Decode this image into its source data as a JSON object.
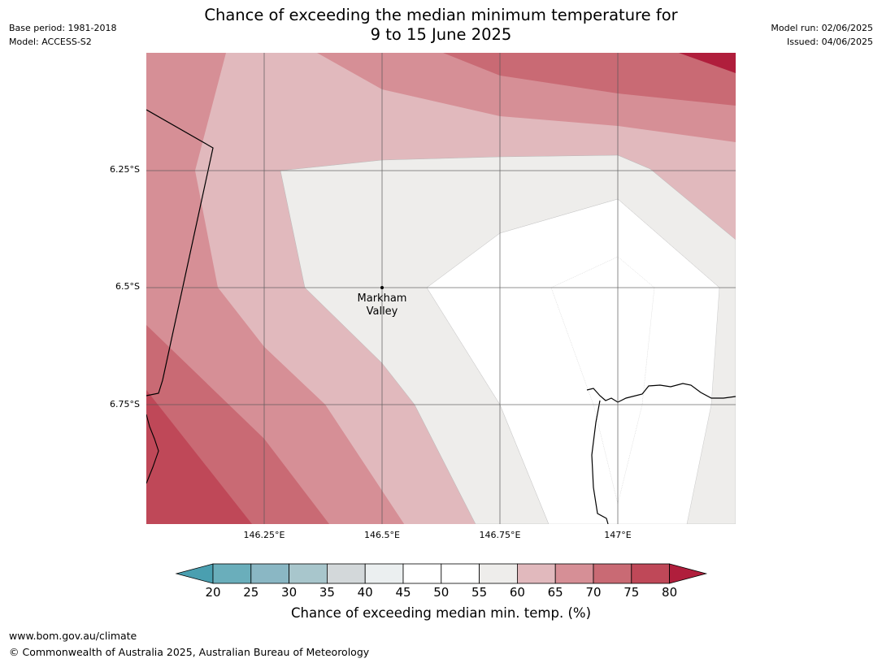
{
  "header": {
    "title_line1": "Chance of exceeding the median minimum temperature for",
    "title_line2": "9 to 15 June 2025",
    "base_period": "Base period: 1981-2018",
    "model": "Model: ACCESS-S2",
    "model_run": "Model run: 02/06/2025",
    "issued": "Issued: 04/06/2025"
  },
  "map": {
    "lat_ticks": [
      "6.25°S",
      "6.5°S",
      "6.75°S"
    ],
    "lon_ticks": [
      "146.25°E",
      "146.5°E",
      "146.75°E",
      "147°E"
    ],
    "place": {
      "name_line1": "Markham",
      "name_line2": "Valley",
      "lon": 146.5,
      "lat": -6.5
    }
  },
  "colorbar": {
    "title": "Chance of exceeding median min. temp. (%)",
    "tick_labels": [
      "20",
      "25",
      "30",
      "35",
      "40",
      "45",
      "50",
      "55",
      "60",
      "65",
      "70",
      "75",
      "80"
    ],
    "colors": {
      "lt20": "#4a9fb0",
      "20-25": "#6aaebb",
      "25-30": "#8ab7c4",
      "30-35": "#a8c6cc",
      "35-40": "#d3d8da",
      "40-45": "#ebeff0",
      "45-50": "#ffffff",
      "50-55": "#ffffff",
      "55-60": "#eeedeb",
      "60-65": "#e1b9bd",
      "65-70": "#d68f96",
      "70-75": "#c96a74",
      "75-80": "#bf4858",
      "gt80": "#b01e3c"
    }
  },
  "footer": {
    "url": "www.bom.gov.au/climate",
    "copyright": "© Commonwealth of Australia 2025, Australian Bureau of Meteorology"
  }
}
